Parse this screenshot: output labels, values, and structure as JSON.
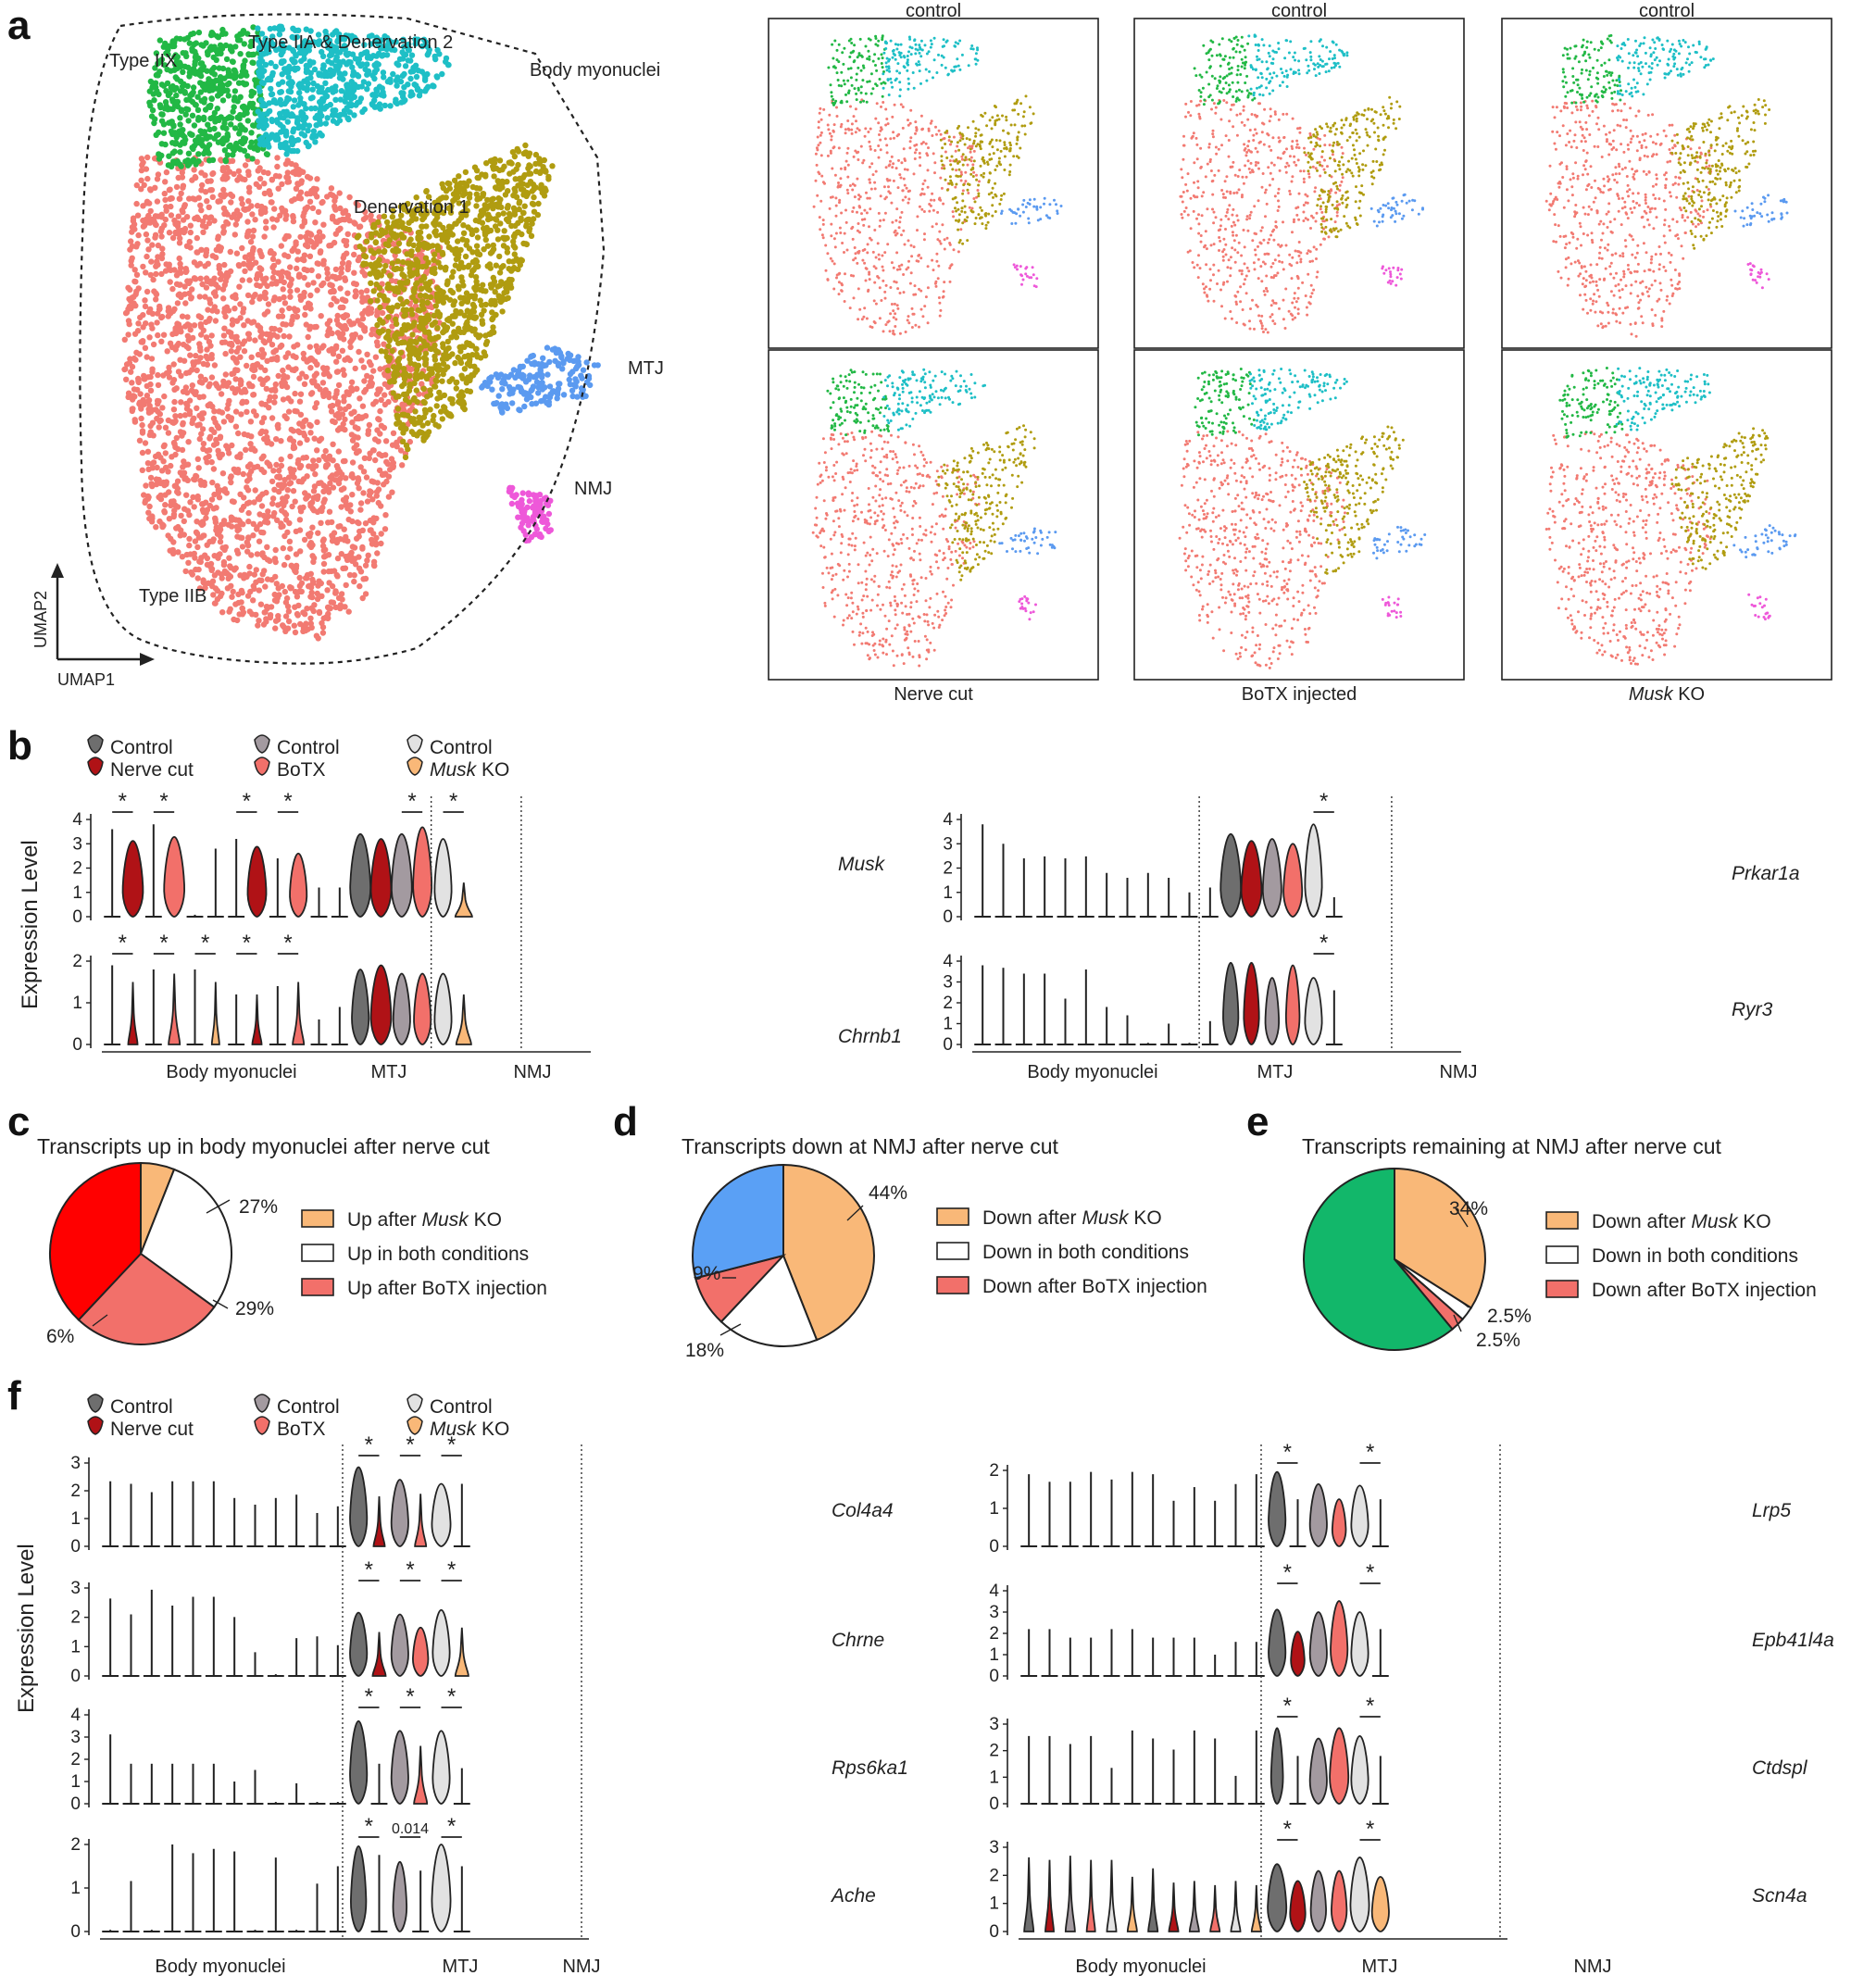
{
  "panel_letters": [
    "a",
    "b",
    "c",
    "d",
    "e",
    "f"
  ],
  "colors": {
    "typeIIB": "#F27A72",
    "typeIIX": "#22B845",
    "typeIIA": "#1EBFC6",
    "denervation1": "#B09C10",
    "mtj": "#5B9AF0",
    "nmj": "#EE58D9",
    "control_dark": "#6E6E6E",
    "nerve_cut": "#B01216",
    "control_mid": "#A39AA0",
    "botx": "#F2706A",
    "control_light": "#E2E2E2",
    "musk_ko": "#F9B878",
    "pie_red": "#FF0000",
    "pie_blue": "#5AA0F5",
    "pie_green": "#12B76A"
  },
  "panel_a": {
    "cluster_labels": {
      "type_iix": "Type IIX",
      "type_iia": "Type IIA & Denervation 2",
      "body": "Body myonuclei",
      "den1": "Denervation 1",
      "mtj": "MTJ",
      "nmj": "NMJ",
      "type_iib": "Type IIB"
    },
    "axis_x": "UMAP1",
    "axis_y": "UMAP2",
    "small_titles": [
      "control",
      "control",
      "control"
    ],
    "small_bottom": [
      "Nerve cut",
      "BoTX injected",
      "KO"
    ],
    "musk_italic": "Musk"
  },
  "panel_b": {
    "legend": {
      "control": "Control",
      "nerve_cut": "Nerve cut",
      "botx": "BoTX",
      "musk": "Musk",
      "ko": " KO"
    },
    "ylabel": "Expression Level",
    "groups": [
      "Body myonuclei",
      "MTJ",
      "NMJ"
    ],
    "genes_left": [
      "Musk",
      "Chrnb1"
    ],
    "genes_right": [
      "Prkar1a",
      "Ryr3"
    ],
    "star": "*"
  },
  "panel_c": {
    "title": "Transcripts up in body myonuclei after nerve cut",
    "legend": [
      "Up after",
      "Musk",
      " KO",
      "Up in both conditions",
      "Up after BoTX injection"
    ],
    "pct": [
      "27%",
      "29%",
      "6%"
    ]
  },
  "panel_d": {
    "title": "Transcripts down at NMJ after nerve cut",
    "legend": [
      "Down after",
      "Musk",
      " KO",
      "Down in both conditions",
      "Down after BoTX injection"
    ],
    "pct": [
      "44%",
      "9%",
      "18%"
    ]
  },
  "panel_e": {
    "title": "Transcripts remaining at NMJ after nerve cut",
    "legend": [
      "Down after",
      "Musk",
      " KO",
      "Down in both conditions",
      "Down after BoTX injection"
    ],
    "pct": [
      "34%",
      "2.5%",
      "2.5%"
    ]
  },
  "panel_f": {
    "genes_left": [
      "Col4a4",
      "Chrne",
      "Rps6ka1",
      "Ache"
    ],
    "genes_right": [
      "Lrp5",
      "Epb41l4a",
      "Ctdspl",
      "Scn4a"
    ],
    "pvalue_label": "0.014"
  },
  "chart_data": [
    {
      "type": "pie",
      "title": "Transcripts up in body myonuclei after nerve cut",
      "labels": [
        "Up after Musk KO",
        "Up in both conditions",
        "Up after BoTX injection",
        "other"
      ],
      "values": [
        6,
        29,
        27,
        38
      ]
    },
    {
      "type": "pie",
      "title": "Transcripts down at NMJ after nerve cut",
      "labels": [
        "Down after Musk KO",
        "Down in both conditions",
        "Down after BoTX injection",
        "other"
      ],
      "values": [
        44,
        18,
        9,
        29
      ]
    },
    {
      "type": "pie",
      "title": "Transcripts remaining at NMJ after nerve cut",
      "labels": [
        "Down after Musk KO",
        "Down in both conditions",
        "Down after BoTX injection",
        "other"
      ],
      "values": [
        34,
        2.5,
        2.5,
        61
      ]
    }
  ]
}
